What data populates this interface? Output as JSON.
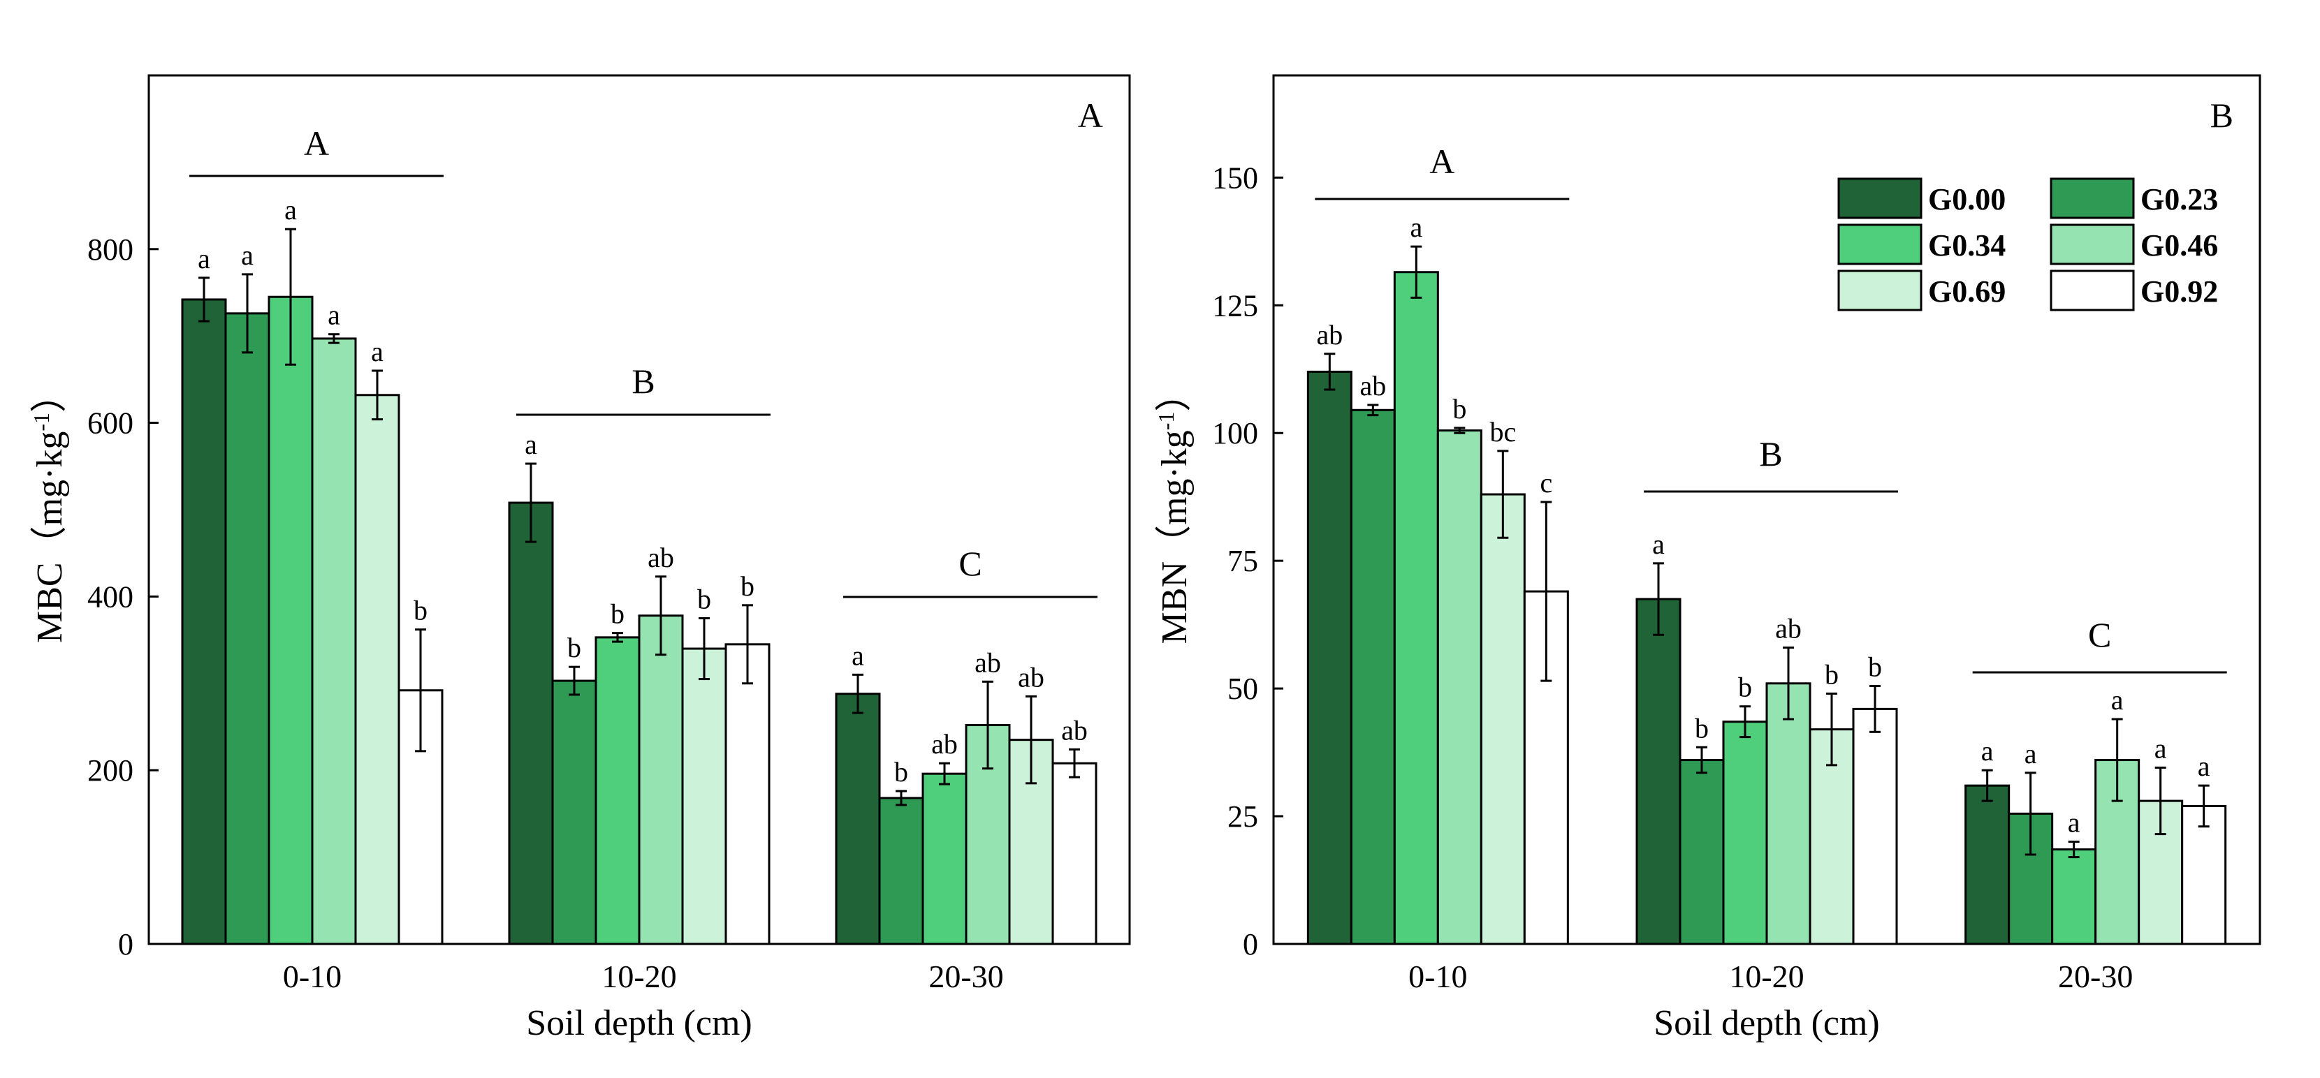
{
  "chart_data": [
    {
      "type": "bar",
      "panel_label": "A",
      "ylabel": "MBC（mg·kg",
      "ylabel_sup": "-1",
      "ylabel_close": "）",
      "xlabel": "Soil depth (cm)",
      "ylim": [
        0,
        1000
      ],
      "yticks": [
        0,
        200,
        400,
        600,
        800
      ],
      "categories": [
        "0-10",
        "10-20",
        "20-30"
      ],
      "series": [
        {
          "name": "G0.00",
          "values": [
            742,
            508,
            288
          ],
          "errors": [
            25,
            45,
            22
          ],
          "letters": [
            "a",
            "a",
            "a"
          ]
        },
        {
          "name": "G0.23",
          "values": [
            726,
            303,
            168
          ],
          "errors": [
            45,
            16,
            8
          ],
          "letters": [
            "a",
            "b",
            "b"
          ]
        },
        {
          "name": "G0.34",
          "values": [
            745,
            353,
            196
          ],
          "errors": [
            78,
            5,
            12
          ],
          "letters": [
            "a",
            "b",
            "ab"
          ]
        },
        {
          "name": "G0.46",
          "values": [
            697,
            378,
            252
          ],
          "errors": [
            5,
            45,
            50
          ],
          "letters": [
            "a",
            "ab",
            "ab"
          ]
        },
        {
          "name": "G0.69",
          "values": [
            632,
            340,
            235
          ],
          "errors": [
            28,
            35,
            50
          ],
          "letters": [
            "a",
            "b",
            "ab"
          ]
        },
        {
          "name": "G0.92",
          "values": [
            292,
            345,
            208
          ],
          "errors": [
            70,
            45,
            16
          ],
          "letters": [
            "b",
            "b",
            "ab"
          ]
        }
      ],
      "group_letters": [
        "A",
        "B",
        "C"
      ]
    },
    {
      "type": "bar",
      "panel_label": "B",
      "ylabel": "MBN（mg·kg",
      "ylabel_sup": "-1",
      "ylabel_close": "）",
      "xlabel": "Soil depth (cm)",
      "ylim": [
        0,
        170
      ],
      "yticks": [
        0,
        25,
        50,
        75,
        100,
        125,
        150
      ],
      "categories": [
        "0-10",
        "10-20",
        "20-30"
      ],
      "series": [
        {
          "name": "G0.00",
          "values": [
            112,
            67.5,
            31
          ],
          "errors": [
            3.5,
            7,
            3
          ],
          "letters": [
            "ab",
            "a",
            "a"
          ]
        },
        {
          "name": "G0.23",
          "values": [
            104.5,
            36,
            25.5
          ],
          "errors": [
            1,
            2.5,
            8
          ],
          "letters": [
            "ab",
            "b",
            "a"
          ]
        },
        {
          "name": "G0.34",
          "values": [
            131.5,
            43.5,
            18.5
          ],
          "errors": [
            5,
            3,
            1.5
          ],
          "letters": [
            "a",
            "b",
            "a"
          ]
        },
        {
          "name": "G0.46",
          "values": [
            100.5,
            51,
            36
          ],
          "errors": [
            0.5,
            7,
            8
          ],
          "letters": [
            "b",
            "ab",
            "a"
          ]
        },
        {
          "name": "G0.69",
          "values": [
            88,
            42,
            28
          ],
          "errors": [
            8.5,
            7,
            6.5
          ],
          "letters": [
            "bc",
            "b",
            "a"
          ]
        },
        {
          "name": "G0.92",
          "values": [
            69,
            46,
            27
          ],
          "errors": [
            17.5,
            4.5,
            4
          ],
          "letters": [
            "c",
            "b",
            "a"
          ]
        }
      ],
      "group_letters": [
        "A",
        "B",
        "C"
      ]
    }
  ],
  "legend": [
    "G0.00",
    "G0.23",
    "G0.34",
    "G0.46",
    "G0.69",
    "G0.92"
  ],
  "colors": [
    "#1f6336",
    "#2e9a54",
    "#4fcf7c",
    "#95e3b0",
    "#ccf2da",
    "#ffffff"
  ]
}
